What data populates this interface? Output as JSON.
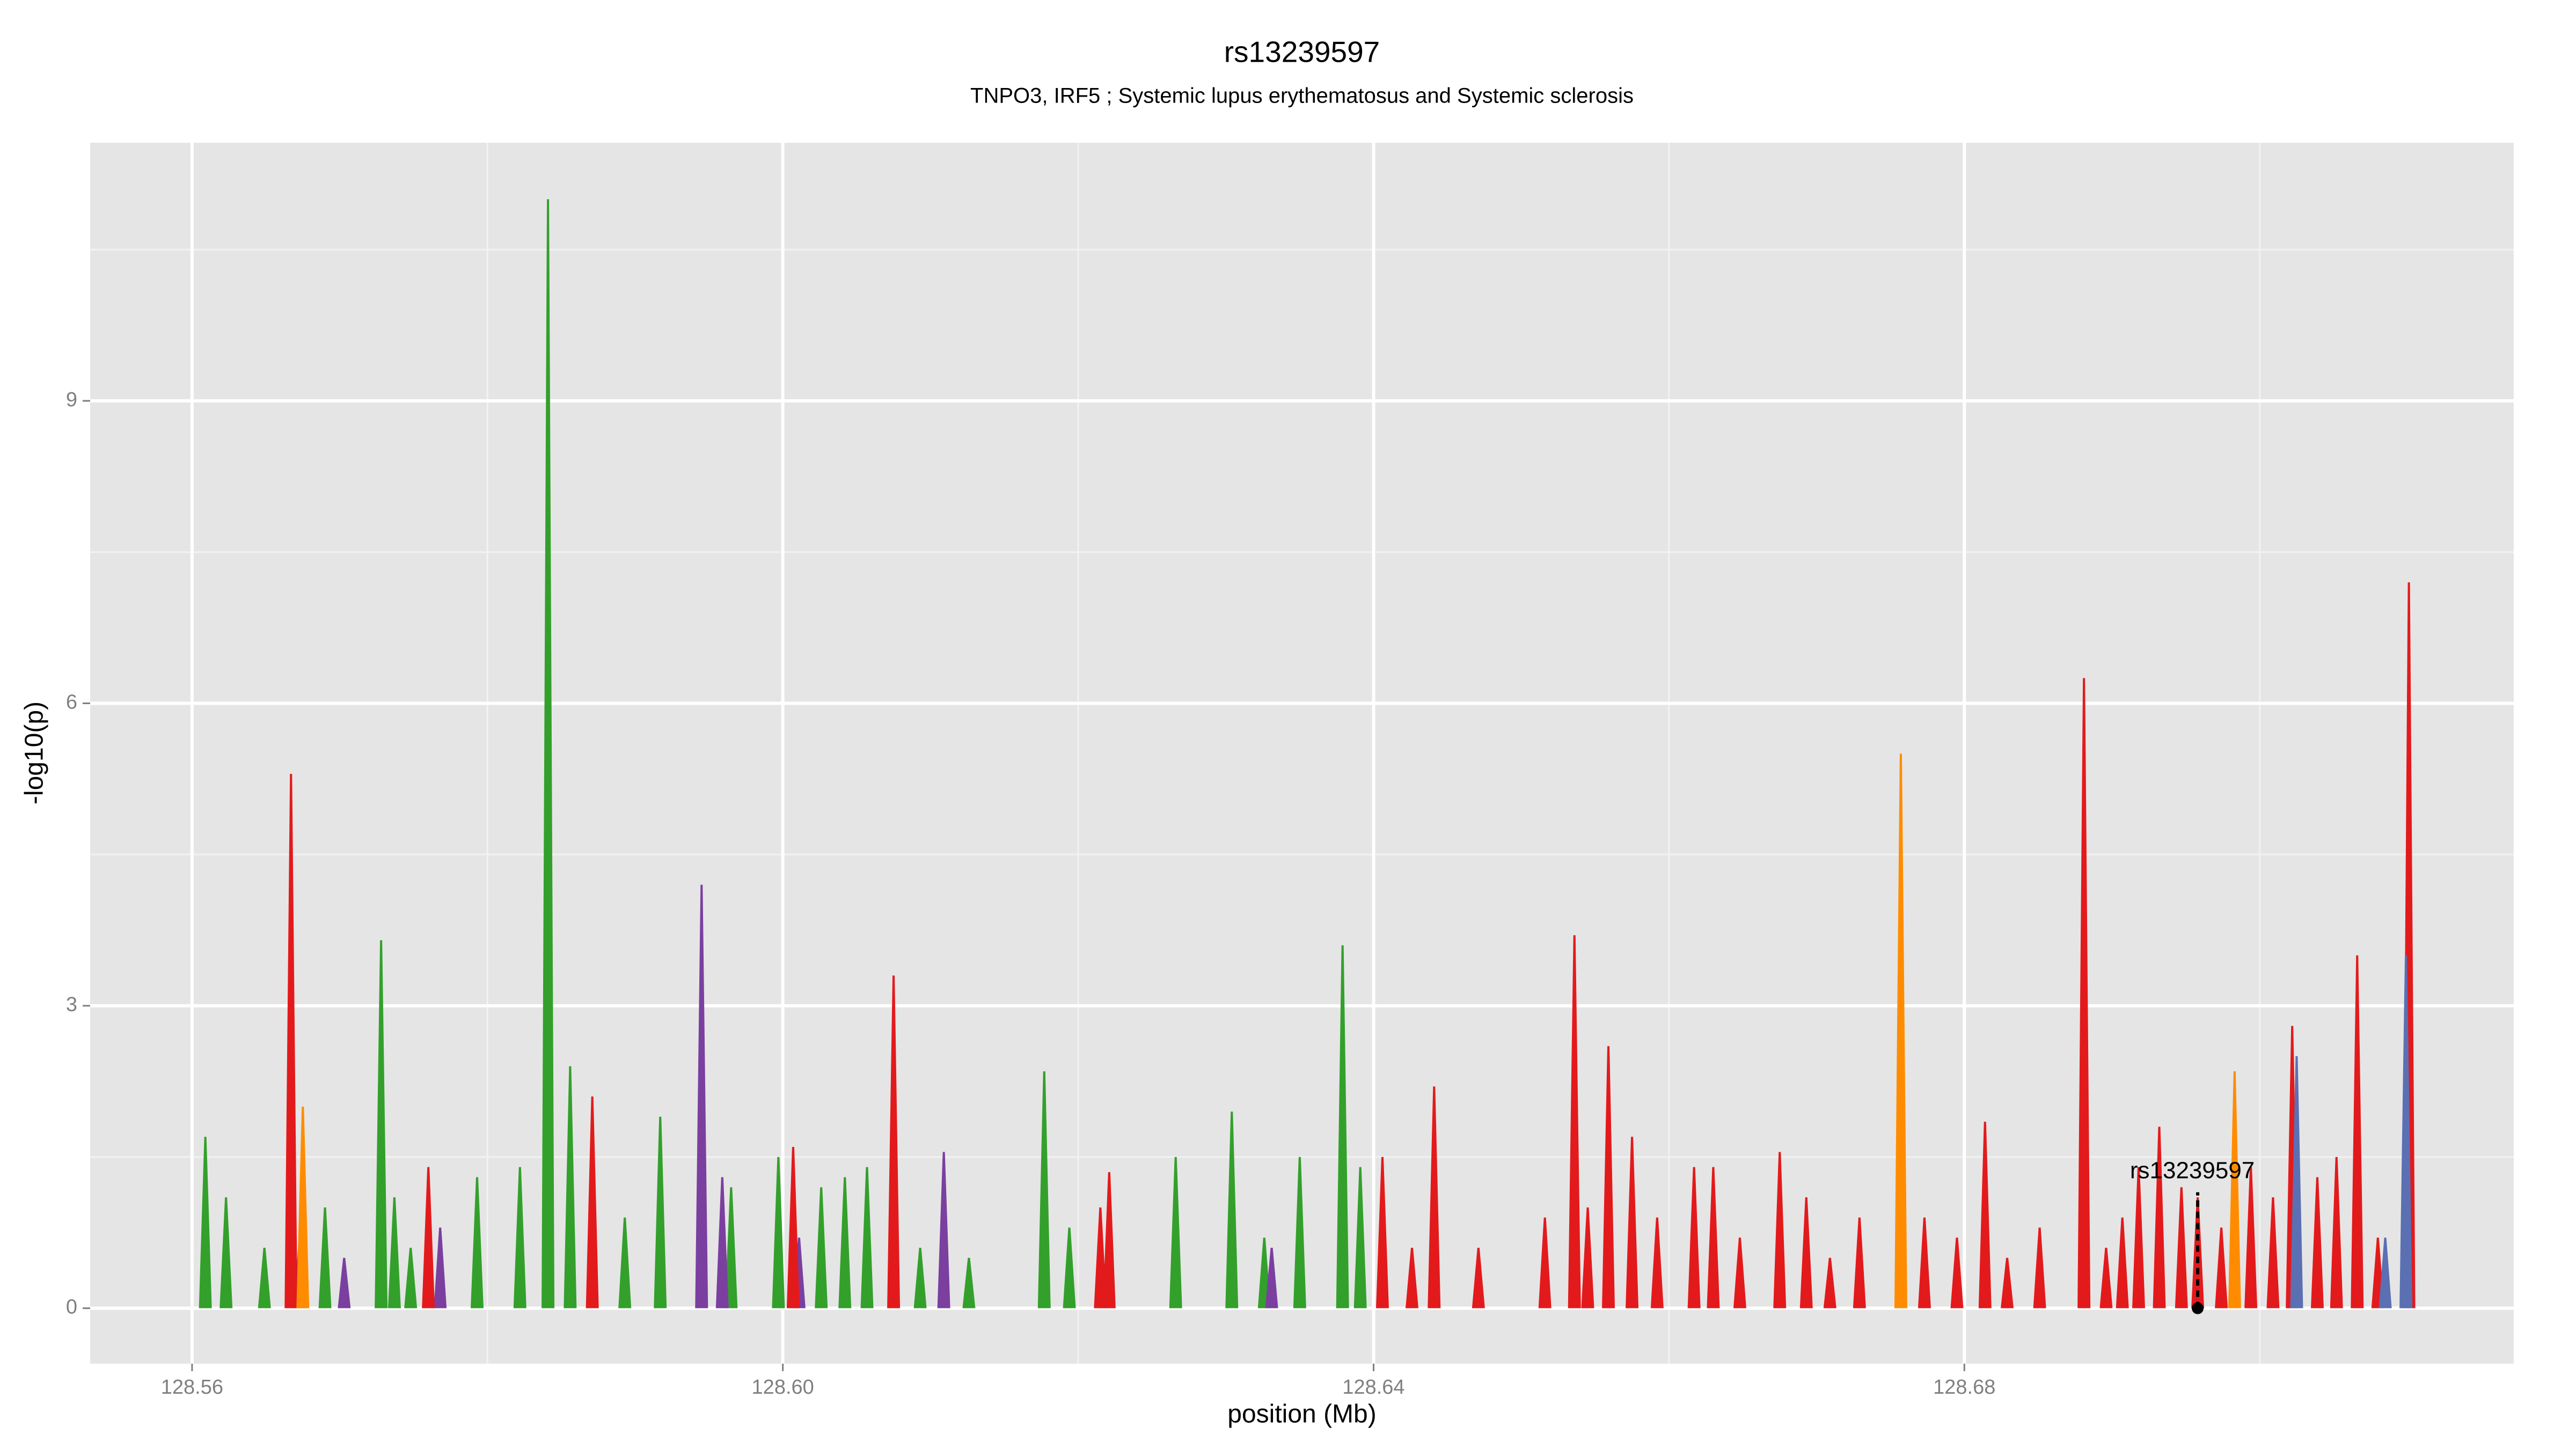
{
  "chart_data": {
    "type": "spike",
    "title": "rs13239597",
    "subtitle": "TNPO3, IRF5 ; Systemic lupus erythematosus and Systemic sclerosis",
    "xlabel": "position (Mb)",
    "ylabel": "-log10(p)",
    "xlim": [
      128.5531,
      128.7172
    ],
    "ylim": [
      -0.55,
      11.56
    ],
    "xticks": [
      128.56,
      {
        "value": 128.6,
        "label": "128.60"
      },
      128.64,
      128.68
    ],
    "yticks": [
      0,
      3,
      6,
      9
    ],
    "x_minor_ticks": [
      128.58,
      128.62,
      128.66,
      128.7
    ],
    "y_minor_ticks": [
      1.5,
      4.5,
      7.5,
      10.5
    ],
    "grid": true,
    "series": [
      {
        "name": "green",
        "color": "#33a02c",
        "x": [
          128.5609,
          128.5623,
          128.5649,
          128.569,
          128.5728,
          128.5737,
          128.5748,
          128.5793,
          128.5822,
          128.5841,
          128.5856,
          128.5893,
          128.5917,
          128.5965,
          128.5997,
          128.6026,
          128.6042,
          128.6057,
          128.6093,
          128.6126,
          128.6177,
          128.6194,
          128.6266,
          128.6304,
          128.6326,
          128.635,
          128.6379,
          128.6391
        ],
        "values": [
          1.7,
          1.1,
          0.6,
          1.0,
          3.65,
          1.1,
          0.6,
          1.3,
          1.4,
          11.0,
          2.4,
          0.9,
          1.9,
          1.2,
          1.5,
          1.2,
          1.3,
          1.4,
          0.6,
          0.5,
          2.35,
          0.8,
          1.5,
          1.95,
          0.7,
          1.5,
          3.6,
          1.4
        ]
      },
      {
        "name": "purple",
        "color": "#7b3fa0",
        "x": [
          128.5673,
          128.5703,
          128.5768,
          128.5945,
          128.5959,
          128.6011,
          128.6109,
          128.6331
        ],
        "values": [
          0.7,
          0.5,
          0.8,
          4.2,
          1.3,
          0.7,
          1.55,
          0.6
        ]
      },
      {
        "name": "red",
        "color": "#e31a1c",
        "x": [
          128.5667,
          128.576,
          128.5871,
          128.6007,
          128.6075,
          128.6215,
          128.6221,
          128.6406,
          128.6426,
          128.6441,
          128.6471,
          128.6516,
          128.6536,
          128.6545,
          128.6559,
          128.6575,
          128.6592,
          128.6617,
          128.663,
          128.6648,
          128.6675,
          128.6693,
          128.6709,
          128.6729,
          128.6773,
          128.6795,
          128.6814,
          128.6829,
          128.6851,
          128.6881,
          128.6896,
          128.6907,
          128.6918,
          128.6932,
          128.6947,
          128.6958,
          128.6974,
          128.6994,
          128.7009,
          128.7022,
          128.7039,
          128.7052,
          128.7066,
          128.708,
          128.7101
        ],
        "values": [
          5.3,
          1.4,
          2.1,
          1.6,
          3.3,
          1.0,
          1.35,
          1.5,
          0.6,
          2.2,
          0.6,
          0.9,
          3.7,
          1.0,
          2.6,
          1.7,
          0.9,
          1.4,
          1.4,
          0.7,
          1.55,
          1.1,
          0.5,
          0.9,
          0.9,
          0.7,
          1.85,
          0.5,
          0.8,
          6.25,
          0.6,
          0.9,
          1.4,
          1.8,
          1.2,
          1.1,
          0.8,
          1.4,
          1.1,
          2.8,
          1.3,
          1.5,
          3.5,
          0.7,
          7.2
        ]
      },
      {
        "name": "orange",
        "color": "#ff8c00",
        "x": [
          128.5675,
          128.6757,
          128.6983
        ],
        "values": [
          2.0,
          5.5,
          2.35
        ]
      },
      {
        "name": "blue",
        "color": "#5b6fb3",
        "x": [
          128.7025,
          128.7085,
          128.7099
        ],
        "values": [
          2.5,
          0.7,
          3.5
        ]
      }
    ],
    "annotation": {
      "text": "rs13239597",
      "x": 128.6958,
      "y": 0
    }
  }
}
